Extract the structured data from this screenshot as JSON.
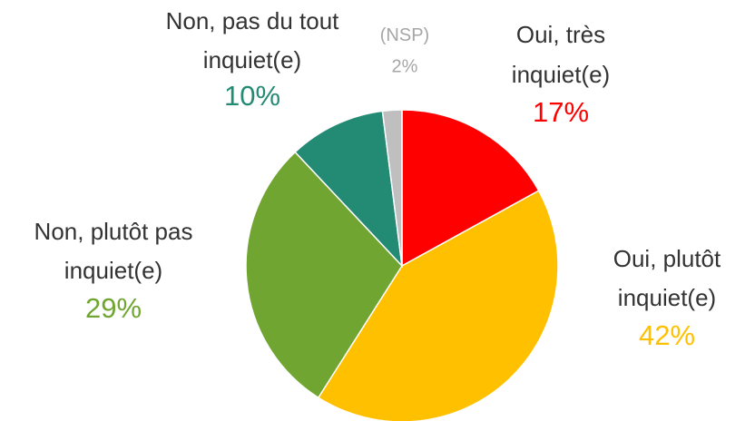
{
  "chart_data": {
    "type": "pie",
    "categories": [
      "Oui, très inquiet(e)",
      "Oui, plutôt inquiet(e)",
      "Non, plutôt pas inquiet(e)",
      "Non, pas du tout inquiet(e)",
      "(NSP)"
    ],
    "values": [
      17,
      42,
      29,
      10,
      2
    ],
    "value_labels": [
      "17%",
      "42%",
      "29%",
      "10%",
      "2%"
    ],
    "colors": [
      "#ff0000",
      "#ffc000",
      "#70a532",
      "#238a74",
      "#bfbfbf"
    ]
  }
}
